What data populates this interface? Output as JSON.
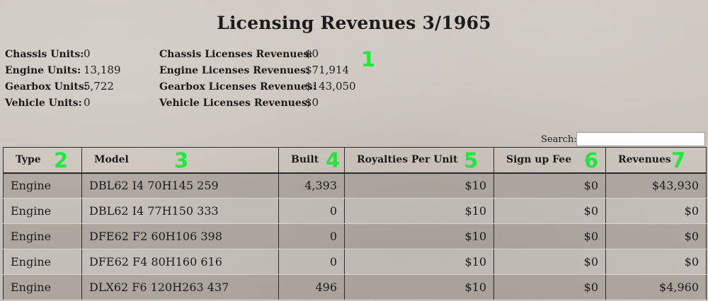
{
  "title": "Licensing Revenues 3/1965",
  "units": [
    {
      "label": "Chassis Units:",
      "value": "0"
    },
    {
      "label": "Engine Units:",
      "value": "13,189"
    },
    {
      "label": "Gearbox Units:",
      "value": "5,722"
    },
    {
      "label": "Vehicle Units:",
      "value": "0"
    }
  ],
  "licenses": [
    {
      "label": "Chassis Licenses Revenues:",
      "value": "$0"
    },
    {
      "label": "Engine Licenses Revenues:",
      "value": "$71,914"
    },
    {
      "label": "Gearbox Licenses Revenues:",
      "value": "$143,050"
    },
    {
      "label": "Vehicle Licenses Revenues:",
      "value": "$0"
    }
  ],
  "markers": [
    "1",
    "2",
    "3",
    "4",
    "5",
    "6",
    "7"
  ],
  "search": {
    "label": "Search:",
    "value": ""
  },
  "table": {
    "headers": [
      "Type",
      "Model",
      "Built",
      "Royalties Per Unit",
      "Sign up Fee",
      "Revenues"
    ],
    "rows": [
      [
        "Engine",
        "DBL62 I4 70H145 259",
        "4,393",
        "$10",
        "$0",
        "$43,930"
      ],
      [
        "Engine",
        "DBL62 I4 77H150 333",
        "0",
        "$10",
        "$0",
        "$0"
      ],
      [
        "Engine",
        "DFE62 F2 60H106 398",
        "0",
        "$10",
        "$0",
        "$0"
      ],
      [
        "Engine",
        "DFE62 F4 80H160 616",
        "0",
        "$10",
        "$0",
        "$0"
      ],
      [
        "Engine",
        "DLX62 F6 120H263 437",
        "496",
        "$10",
        "$0",
        "$4,960"
      ]
    ]
  },
  "colors": {
    "marker": "#22e63a",
    "background": "#c8c1ba"
  }
}
